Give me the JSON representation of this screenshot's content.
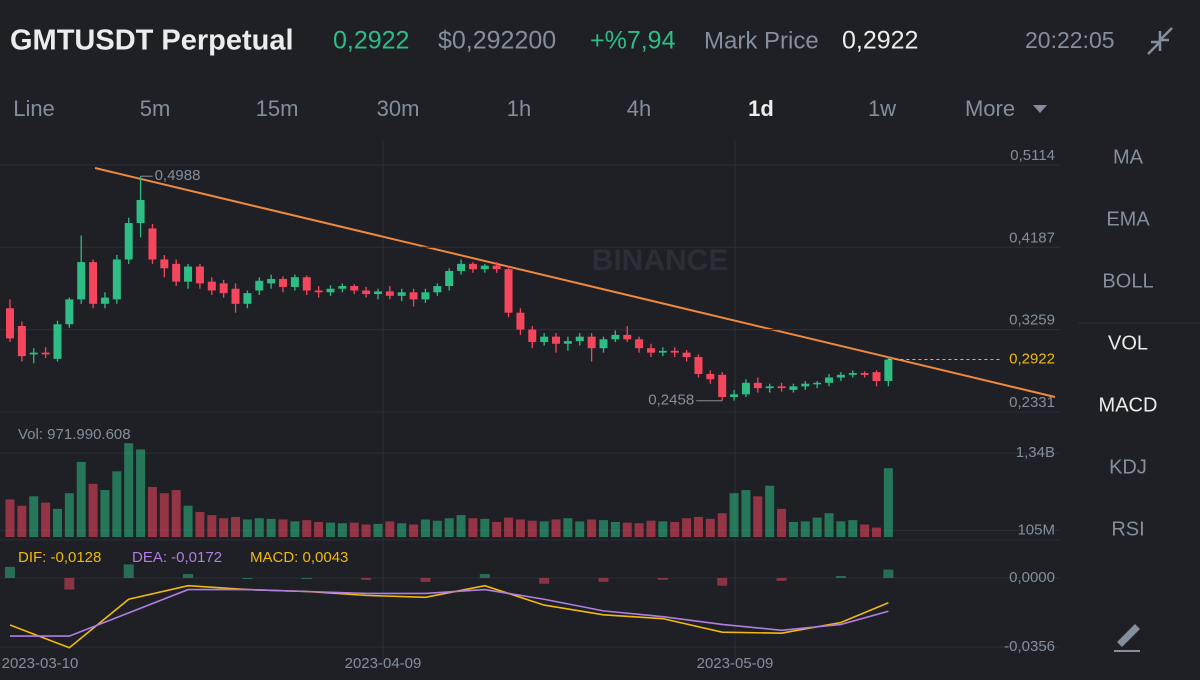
{
  "header": {
    "symbol": "GMTUSDT Perpetual",
    "last_price": "0,2922",
    "usd_price": "$0,292200",
    "change": "+%7,94",
    "mark_price_label": "Mark Price",
    "mark_price": "0,2922",
    "time": "20:22:05"
  },
  "intervals": [
    "Line",
    "5m",
    "15m",
    "30m",
    "1h",
    "4h",
    "1d",
    "1w",
    "More"
  ],
  "active_interval": 6,
  "indicators": [
    "MA",
    "EMA",
    "BOLL",
    "VOL",
    "MACD",
    "KDJ",
    "RSI"
  ],
  "active_indicators": [
    3,
    4
  ],
  "watermark": "BINANCE",
  "chart_data": {
    "type": "candlestick",
    "colors": {
      "up": "#2ebd85",
      "down": "#f6465d"
    },
    "x_labels": [
      "2023-03-10",
      "2023-04-09",
      "2023-05-09"
    ],
    "ylim": [
      0.2331,
      0.5396
    ],
    "yticks": [
      {
        "value": 0.5114,
        "label": "0,5114"
      },
      {
        "value": 0.4187,
        "label": "0,4187"
      },
      {
        "value": 0.3259,
        "label": "0,3259"
      },
      {
        "value": 0.2331,
        "label": "0,2331"
      }
    ],
    "current_price": {
      "value": 0.2922,
      "label": "0,2922",
      "color": "#f0b90b"
    },
    "high_label": {
      "value": 0.4988,
      "label": "0,4988"
    },
    "low_label": {
      "value": 0.2458,
      "label": "0,2458"
    },
    "candles": [
      [
        0.35,
        0.36,
        0.312,
        0.316
      ],
      [
        0.33,
        0.335,
        0.29,
        0.296
      ],
      [
        0.298,
        0.305,
        0.288,
        0.3
      ],
      [
        0.3,
        0.306,
        0.294,
        0.298
      ],
      [
        0.293,
        0.336,
        0.29,
        0.332
      ],
      [
        0.332,
        0.362,
        0.328,
        0.36
      ],
      [
        0.36,
        0.432,
        0.355,
        0.402
      ],
      [
        0.402,
        0.405,
        0.35,
        0.355
      ],
      [
        0.355,
        0.368,
        0.35,
        0.362
      ],
      [
        0.36,
        0.41,
        0.355,
        0.405
      ],
      [
        0.405,
        0.452,
        0.4,
        0.446
      ],
      [
        0.446,
        0.4988,
        0.43,
        0.472
      ],
      [
        0.44,
        0.445,
        0.4,
        0.405
      ],
      [
        0.405,
        0.41,
        0.385,
        0.395
      ],
      [
        0.4,
        0.405,
        0.375,
        0.38
      ],
      [
        0.38,
        0.4,
        0.372,
        0.397
      ],
      [
        0.397,
        0.4,
        0.372,
        0.378
      ],
      [
        0.38,
        0.385,
        0.365,
        0.37
      ],
      [
        0.378,
        0.382,
        0.362,
        0.367
      ],
      [
        0.372,
        0.378,
        0.345,
        0.355
      ],
      [
        0.355,
        0.37,
        0.35,
        0.367
      ],
      [
        0.37,
        0.385,
        0.365,
        0.381
      ],
      [
        0.378,
        0.388,
        0.372,
        0.383
      ],
      [
        0.383,
        0.386,
        0.368,
        0.374
      ],
      [
        0.374,
        0.388,
        0.37,
        0.385
      ],
      [
        0.385,
        0.387,
        0.365,
        0.37
      ],
      [
        0.37,
        0.375,
        0.362,
        0.368
      ],
      [
        0.368,
        0.376,
        0.364,
        0.372
      ],
      [
        0.372,
        0.378,
        0.368,
        0.375
      ],
      [
        0.375,
        0.377,
        0.366,
        0.37
      ],
      [
        0.37,
        0.374,
        0.362,
        0.366
      ],
      [
        0.366,
        0.372,
        0.36,
        0.369
      ],
      [
        0.369,
        0.375,
        0.36,
        0.364
      ],
      [
        0.364,
        0.372,
        0.358,
        0.368
      ],
      [
        0.368,
        0.372,
        0.352,
        0.36
      ],
      [
        0.36,
        0.372,
        0.356,
        0.368
      ],
      [
        0.368,
        0.378,
        0.364,
        0.375
      ],
      [
        0.375,
        0.395,
        0.37,
        0.392
      ],
      [
        0.392,
        0.405,
        0.388,
        0.4
      ],
      [
        0.4,
        0.402,
        0.39,
        0.394
      ],
      [
        0.394,
        0.4,
        0.39,
        0.398
      ],
      [
        0.398,
        0.402,
        0.39,
        0.394
      ],
      [
        0.394,
        0.398,
        0.34,
        0.345
      ],
      [
        0.345,
        0.35,
        0.32,
        0.326
      ],
      [
        0.326,
        0.33,
        0.305,
        0.312
      ],
      [
        0.312,
        0.322,
        0.308,
        0.318
      ],
      [
        0.318,
        0.322,
        0.3,
        0.31
      ],
      [
        0.31,
        0.318,
        0.302,
        0.313
      ],
      [
        0.313,
        0.322,
        0.308,
        0.318
      ],
      [
        0.318,
        0.322,
        0.29,
        0.305
      ],
      [
        0.305,
        0.318,
        0.3,
        0.315
      ],
      [
        0.315,
        0.325,
        0.312,
        0.32
      ],
      [
        0.32,
        0.33,
        0.312,
        0.315
      ],
      [
        0.315,
        0.318,
        0.3,
        0.305
      ],
      [
        0.305,
        0.31,
        0.295,
        0.3
      ],
      [
        0.3,
        0.306,
        0.296,
        0.302
      ],
      [
        0.302,
        0.306,
        0.295,
        0.3
      ],
      [
        0.3,
        0.303,
        0.29,
        0.295
      ],
      [
        0.295,
        0.298,
        0.272,
        0.276
      ],
      [
        0.276,
        0.28,
        0.265,
        0.27
      ],
      [
        0.275,
        0.278,
        0.2458,
        0.25
      ],
      [
        0.25,
        0.258,
        0.246,
        0.253
      ],
      [
        0.253,
        0.27,
        0.25,
        0.266
      ],
      [
        0.266,
        0.272,
        0.255,
        0.26
      ],
      [
        0.26,
        0.265,
        0.255,
        0.262
      ],
      [
        0.262,
        0.266,
        0.256,
        0.26
      ],
      [
        0.258,
        0.265,
        0.255,
        0.262
      ],
      [
        0.262,
        0.268,
        0.258,
        0.265
      ],
      [
        0.265,
        0.268,
        0.26,
        0.266
      ],
      [
        0.266,
        0.276,
        0.262,
        0.272
      ],
      [
        0.272,
        0.278,
        0.268,
        0.275
      ],
      [
        0.275,
        0.28,
        0.272,
        0.277
      ],
      [
        0.277,
        0.279,
        0.272,
        0.275
      ],
      [
        0.278,
        0.28,
        0.262,
        0.268
      ],
      [
        0.268,
        0.295,
        0.262,
        0.2922
      ]
    ],
    "volume": {
      "label": "Vol: 971.990.608",
      "ylim": [
        0,
        1870
      ],
      "yticks": [
        {
          "value": 1340,
          "label": "1,34B"
        },
        {
          "value": 105,
          "label": "105M"
        }
      ],
      "values": [
        600,
        500,
        650,
        550,
        450,
        700,
        1200,
        850,
        750,
        1050,
        1500,
        1400,
        800,
        700,
        750,
        500,
        400,
        350,
        300,
        320,
        280,
        300,
        290,
        280,
        250,
        270,
        240,
        230,
        220,
        230,
        200,
        210,
        250,
        220,
        200,
        280,
        260,
        300,
        350,
        300,
        290,
        240,
        310,
        280,
        260,
        250,
        280,
        300,
        250,
        280,
        270,
        240,
        230,
        220,
        260,
        250,
        240,
        300,
        320,
        290,
        380,
        700,
        750,
        650,
        820,
        450,
        240,
        250,
        310,
        380,
        250,
        270,
        200,
        150,
        1100
      ]
    },
    "macd": {
      "ylim": [
        -0.0475,
        0.017
      ],
      "yticks": [
        {
          "value": 0,
          "label": "0,0000"
        },
        {
          "value": -0.0356,
          "label": "-0,0356"
        }
      ],
      "index": [
        0,
        5,
        10,
        15,
        20,
        25,
        30,
        35,
        40,
        45,
        50,
        55,
        60,
        65,
        70,
        74
      ],
      "series": [
        {
          "name": "DIF: -0,0128",
          "color": "#f0b90b",
          "values": [
            -0.0243,
            -0.036,
            -0.011,
            -0.004,
            -0.006,
            -0.007,
            -0.009,
            -0.01,
            -0.004,
            -0.014,
            -0.019,
            -0.021,
            -0.028,
            -0.0285,
            -0.023,
            -0.0128
          ]
        },
        {
          "name": "DEA: -0,0172",
          "color": "#b07ee0",
          "values": [
            -0.03,
            -0.03,
            -0.018,
            -0.006,
            -0.006,
            -0.007,
            -0.008,
            -0.008,
            -0.006,
            -0.011,
            -0.017,
            -0.02,
            -0.024,
            -0.027,
            -0.024,
            -0.0172
          ]
        }
      ],
      "hist": {
        "name": "MACD: 0,0043",
        "color": "#f0b90b",
        "values": [
          0.0057,
          -0.006,
          0.007,
          0.002,
          0,
          0,
          -0.001,
          -0.002,
          0.002,
          -0.003,
          -0.002,
          -0.001,
          -0.004,
          -0.0015,
          0.001,
          0.0043
        ]
      }
    }
  }
}
